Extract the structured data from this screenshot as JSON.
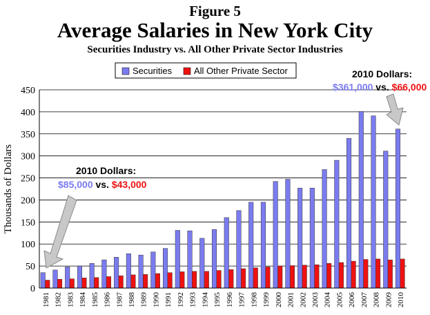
{
  "header": {
    "figure_label": "Figure 5",
    "title": "Average Salaries in New York City",
    "subtitle": "Securities Industry vs. All Other Private Sector Industries"
  },
  "colors": {
    "securities": "#7b7bf0",
    "other": "#ee1111",
    "arrow": "#c8c8c8"
  },
  "annotations": {
    "left": {
      "heading": "2010 Dollars:",
      "value_a": "$85,000",
      "connector": " vs. ",
      "value_b": "$43,000"
    },
    "right": {
      "heading": "2010 Dollars:",
      "value_a": "$361,000",
      "connector": " vs. ",
      "value_b": "$66,000"
    }
  },
  "chart_data": {
    "type": "bar",
    "ylabel": "Thousands of Dollars",
    "xlabel": "",
    "ylim": [
      0,
      450
    ],
    "yticks": [
      0,
      50,
      100,
      150,
      200,
      250,
      300,
      350,
      400,
      450
    ],
    "grid": true,
    "legend_position": "top-center",
    "categories": [
      "1981",
      "1982",
      "1983",
      "1984",
      "1985",
      "1986",
      "1987",
      "1988",
      "1989",
      "1990",
      "1991",
      "1992",
      "1993",
      "1994",
      "1995",
      "1996",
      "1997",
      "1998",
      "1999",
      "2000",
      "2001",
      "2002",
      "2003",
      "2004",
      "2005",
      "2006",
      "2007",
      "2008",
      "2009",
      "2010"
    ],
    "series": [
      {
        "name": "Securities",
        "values": [
          35,
          41,
          48,
          50,
          56,
          64,
          70,
          78,
          75,
          82,
          90,
          131,
          130,
          113,
          133,
          160,
          176,
          195,
          195,
          242,
          247,
          227,
          227,
          269,
          290,
          340,
          401,
          391,
          311,
          361
        ]
      },
      {
        "name": "All Other Private Sector",
        "values": [
          18,
          20,
          21,
          23,
          24,
          26,
          28,
          30,
          31,
          33,
          35,
          37,
          38,
          38,
          40,
          42,
          44,
          46,
          48,
          50,
          51,
          52,
          53,
          56,
          58,
          61,
          65,
          66,
          64,
          66
        ]
      }
    ]
  }
}
